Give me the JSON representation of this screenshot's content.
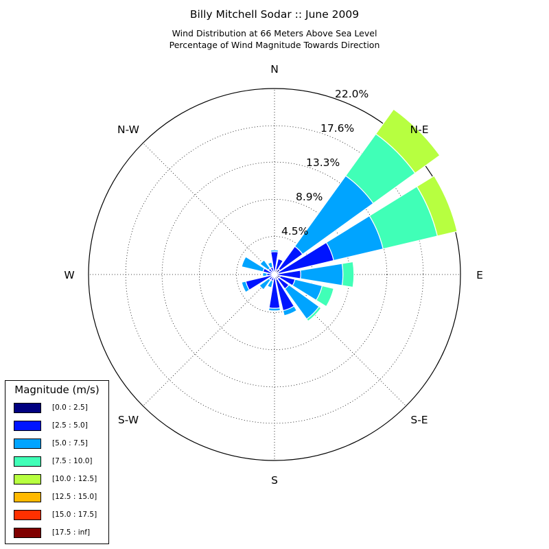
{
  "chart_data": {
    "type": "windrose",
    "title": "Billy Mitchell Sodar :: June 2009",
    "subtitle_lines": [
      "Wind Distribution at 66 Meters Above Sea Level",
      "Percentage of Wind Magnitude Towards Direction"
    ],
    "direction_labels": [
      "N",
      "N-E",
      "E",
      "S-E",
      "S",
      "S-W",
      "W",
      "N-W"
    ],
    "radial_ticks": [
      4.5,
      8.9,
      13.3,
      17.6,
      22.0
    ],
    "radial_tick_labels": [
      "4.5%",
      "8.9%",
      "13.3%",
      "17.6%",
      "22.0%"
    ],
    "rmax": 22.0,
    "grid": true,
    "legend": {
      "title": "Magnitude (m/s)",
      "placement": "lower-left",
      "bins": [
        {
          "label": "[0.0 : 2.5]",
          "color": "#000080"
        },
        {
          "label": "[2.5 : 5.0]",
          "color": "#0014ff"
        },
        {
          "label": "[5.0 : 7.5]",
          "color": "#00a4ff"
        },
        {
          "label": "[7.5 : 10.0]",
          "color": "#40ffb7"
        },
        {
          "label": "[10.0 : 12.5]",
          "color": "#b7ff40"
        },
        {
          "label": "[12.5 : 15.0]",
          "color": "#ffb900"
        },
        {
          "label": "[15.0 : 17.5]",
          "color": "#ff3000"
        },
        {
          "label": "[17.5 : inf]",
          "color": "#800000"
        }
      ]
    },
    "directions_deg": [
      0,
      22.5,
      45,
      67.5,
      90,
      112.5,
      135,
      157.5,
      180,
      202.5,
      225,
      247.5,
      270,
      292.5,
      315,
      337.5
    ],
    "series": [
      {
        "name": "[0.0 : 2.5]",
        "values": [
          0.3,
          0.6,
          0.8,
          0.5,
          0.3,
          0.7,
          0.6,
          0.6,
          0.4,
          0.3,
          0.3,
          0.3,
          0.3,
          0.3,
          0.3,
          0.3
        ]
      },
      {
        "name": "[2.5 : 5.0]",
        "values": [
          2.4,
          1.3,
          3.3,
          6.7,
          2.8,
          1.8,
          1.5,
          3.8,
          3.6,
          0.5,
          0.5,
          3.2,
          0.6,
          1.1,
          0.6,
          0.6
        ]
      },
      {
        "name": "[5.0 : 7.5]",
        "values": [
          0.2,
          0.1,
          10.3,
          6.0,
          5.0,
          3.3,
          4.4,
          0.6,
          0.3,
          0.8,
          1.4,
          0.5,
          0.5,
          2.6,
          1.2,
          0.6
        ]
      },
      {
        "name": "[7.5 : 10.0]",
        "values": [
          0.0,
          0.0,
          6.1,
          6.6,
          1.3,
          1.4,
          0.3,
          0.0,
          0.0,
          0.0,
          0.0,
          0.0,
          0.0,
          0.0,
          0.0,
          0.0
        ]
      },
      {
        "name": "[10.0 : 12.5]",
        "values": [
          0.0,
          0.0,
          3.6,
          2.4,
          0.0,
          0.0,
          0.0,
          0.0,
          0.0,
          0.0,
          0.0,
          0.0,
          0.0,
          0.0,
          0.0,
          0.0
        ]
      },
      {
        "name": "[12.5 : 15.0]",
        "values": [
          0,
          0,
          0,
          0,
          0,
          0,
          0,
          0,
          0,
          0,
          0,
          0,
          0,
          0,
          0,
          0
        ]
      },
      {
        "name": "[15.0 : 17.5]",
        "values": [
          0,
          0,
          0,
          0,
          0,
          0,
          0,
          0,
          0,
          0,
          0,
          0,
          0,
          0,
          0,
          0
        ]
      },
      {
        "name": "[17.5 : inf]",
        "values": [
          0,
          0,
          0,
          0,
          0,
          0,
          0,
          0,
          0,
          0,
          0,
          0,
          0,
          0,
          0,
          0
        ]
      }
    ]
  }
}
